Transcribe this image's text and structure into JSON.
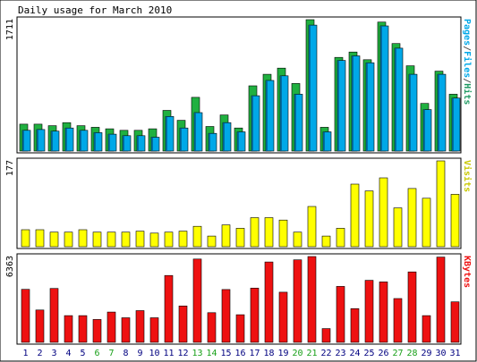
{
  "chart_data": {
    "type": "bar",
    "title": "Daily usage for March 2010",
    "categories": [
      "1",
      "2",
      "3",
      "4",
      "5",
      "6",
      "7",
      "8",
      "9",
      "10",
      "11",
      "12",
      "13",
      "14",
      "15",
      "16",
      "17",
      "18",
      "19",
      "20",
      "21",
      "22",
      "23",
      "24",
      "25",
      "26",
      "27",
      "28",
      "29",
      "30",
      "31"
    ],
    "weekend_days": [
      "6",
      "7",
      "13",
      "14",
      "20",
      "21",
      "27",
      "28"
    ],
    "colors": {
      "pages": "#20b040",
      "files": "#00a8e8",
      "hits": "#1f9a62",
      "visits": "#ffff00",
      "kbytes": "#ee1111",
      "day_weekday": "#000080",
      "day_weekend": "#18a018",
      "frame": "#000000"
    },
    "panels": [
      {
        "id": "hits-panel",
        "max_label": "1711",
        "ymax": 1711,
        "legend": [
          {
            "text": "Pages",
            "color": "#00a8e8"
          },
          {
            "text": "/",
            "color": "#555555"
          },
          {
            "text": "Files",
            "color": "#00a8e8"
          },
          {
            "text": "/",
            "color": "#555555"
          },
          {
            "text": "Hits",
            "color": "#1f9a62"
          }
        ],
        "series": [
          {
            "name": "Hits",
            "color": "#20b040",
            "values": [
              350,
              350,
              330,
              370,
              330,
              310,
              290,
              270,
              270,
              290,
              530,
              400,
              700,
              320,
              470,
              300,
              850,
              1000,
              1080,
              880,
              1711,
              310,
              1220,
              1290,
              1190,
              1680,
              1400,
              1110,
              620,
              1040,
              740
            ]
          },
          {
            "name": "Files",
            "color": "#00a8e8",
            "values": [
              270,
              280,
              260,
              300,
              270,
              240,
              220,
              200,
              200,
              180,
              450,
              300,
              500,
              230,
              370,
              250,
              720,
              920,
              980,
              740,
              1640,
              250,
              1180,
              1240,
              1150,
              1630,
              1340,
              1000,
              540,
              1000,
              690
            ]
          },
          {
            "name": "Pages",
            "color": "#006090",
            "values": [
              270,
              280,
              260,
              300,
              270,
              240,
              220,
              200,
              200,
              180,
              450,
              300,
              500,
              230,
              370,
              250,
              720,
              920,
              980,
              740,
              1640,
              250,
              1180,
              1240,
              1150,
              1630,
              1340,
              1000,
              540,
              1000,
              690
            ]
          }
        ]
      },
      {
        "id": "visits-panel",
        "max_label": "177",
        "ymax": 177,
        "legend": [
          {
            "text": "Visits",
            "color": "#c8c800"
          }
        ],
        "series": [
          {
            "name": "Visits",
            "color": "#ffff00",
            "values": [
              35,
              35,
              30,
              30,
              35,
              30,
              30,
              30,
              32,
              28,
              30,
              32,
              42,
              22,
              45,
              38,
              60,
              60,
              55,
              30,
              83,
              22,
              38,
              129,
              115,
              142,
              80,
              120,
              100,
              177,
              108
            ]
          }
        ]
      },
      {
        "id": "kbytes-panel",
        "max_label": "6363",
        "ymax": 6363,
        "legend": [
          {
            "text": "KBytes",
            "color": "#ee1111"
          }
        ],
        "series": [
          {
            "name": "KBytes",
            "color": "#ee1111",
            "values": [
              3930,
              2400,
              4000,
              1980,
              1980,
              1700,
              2250,
              1820,
              2350,
              1820,
              4960,
              2700,
              6180,
              2200,
              3920,
              2050,
              4020,
              5960,
              3720,
              6120,
              6363,
              1020,
              4150,
              2500,
              4600,
              4480,
              3250,
              5220,
              1980,
              6320,
              3000
            ]
          }
        ]
      }
    ]
  }
}
